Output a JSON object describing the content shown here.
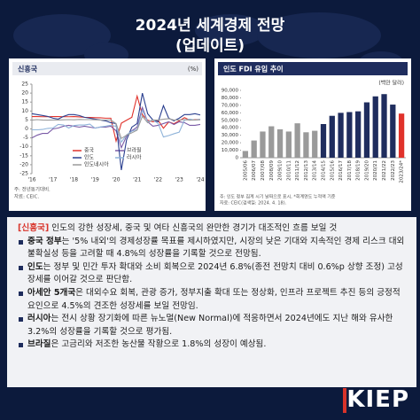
{
  "header": {
    "title": "2024년 세계경제 전망",
    "subtitle": "(업데이트)"
  },
  "chart_data": [
    {
      "type": "line",
      "title": "신흥국",
      "unit": "(%)",
      "categories": [
        "'16",
        null,
        null,
        null,
        "'17",
        null,
        null,
        null,
        "'18",
        null,
        null,
        null,
        "'19",
        null,
        null,
        null,
        "'20",
        null,
        null,
        null,
        "'21",
        null,
        null,
        null,
        "'22",
        null,
        null,
        null,
        "'23",
        null,
        null,
        null,
        "'24"
      ],
      "series": [
        {
          "name": "중국",
          "color": "#e0322b",
          "values": [
            6.9,
            6.9,
            6.8,
            6.8,
            6.9,
            6.9,
            6.8,
            6.8,
            6.9,
            6.7,
            6.5,
            6.4,
            6.3,
            6.2,
            6.0,
            6.0,
            -6.8,
            3.2,
            4.9,
            6.5,
            18.3,
            7.9,
            4.9,
            4.0,
            4.8,
            0.4,
            3.9,
            2.9,
            4.5,
            6.3,
            4.9,
            5.2,
            5.3
          ]
        },
        {
          "name": "브라질",
          "color": "#7a5aa6",
          "values": [
            -5,
            -3.5,
            -2.5,
            -2.5,
            0,
            0.5,
            1.5,
            2,
            1.5,
            1,
            1.5,
            1,
            0.5,
            1,
            1,
            1.5,
            -1,
            -10.5,
            -4,
            -1,
            1,
            12,
            4,
            1.5,
            2,
            3,
            4,
            2.5,
            4,
            3.5,
            2,
            2,
            2.5
          ]
        },
        {
          "name": "인도",
          "color": "#2a3f8f",
          "values": [
            8.5,
            8,
            7.5,
            7,
            6,
            5.5,
            7,
            8,
            8,
            7.5,
            6.5,
            6,
            5.5,
            5,
            4.5,
            3.5,
            3,
            -23,
            -6,
            1,
            3,
            20,
            8.5,
            5,
            4,
            13,
            6,
            4.5,
            6,
            8,
            8,
            8.5,
            7.8
          ]
        },
        {
          "name": "러시아",
          "color": "#8fb3d9",
          "values": [
            -0.5,
            -0.5,
            -0.3,
            0.3,
            0.5,
            2.5,
            2.2,
            0.5,
            1.9,
            2.2,
            2.2,
            2.7,
            0.4,
            1.1,
            1.5,
            2.1,
            1.4,
            -7.4,
            -3.3,
            -1.3,
            -0.3,
            10.5,
            4,
            5,
            3,
            -4.5,
            -3.7,
            -2.7,
            -1.8,
            4.9,
            5.5,
            4.9,
            5.4
          ]
        },
        {
          "name": "인도네시아",
          "color": "#9b9b9b",
          "values": [
            4.9,
            5.2,
            5,
            4.9,
            5,
            5,
            5.1,
            5.2,
            5.1,
            5.3,
            5.2,
            5.2,
            5.1,
            5,
            5,
            5,
            3,
            -5.3,
            -3.5,
            -2.2,
            -0.7,
            7.1,
            3.5,
            5,
            5,
            5.4,
            5.7,
            5,
            5,
            5.2,
            4.9,
            5,
            5.1
          ]
        }
      ],
      "ylim": [
        -25,
        25
      ],
      "yticks": [
        -25,
        -20,
        -15,
        -10,
        -5,
        0,
        5,
        10,
        15,
        20,
        25
      ],
      "notes": [
        "주: 전년동기대비.",
        "자료: CEIC."
      ]
    },
    {
      "type": "bar",
      "title": "인도 FDI 유입 추이",
      "unit": "(백만 달러)",
      "categories": [
        "2005/06",
        "2006/07",
        "2007/08",
        "2008/09",
        "2009/10",
        "2010/11",
        "2011/12",
        "2012/13",
        "2013/14",
        "2014/15",
        "2015/16",
        "2016/17",
        "2017/18",
        "2018/19",
        "2019/20",
        "2020/21",
        "2021/22",
        "2022/23",
        "2023/24*"
      ],
      "values": [
        9000,
        23000,
        35000,
        42000,
        38000,
        35000,
        46000,
        34000,
        36000,
        45000,
        56000,
        60000,
        61000,
        62000,
        74000,
        82000,
        85000,
        71000,
        59000
      ],
      "colors": [
        "#9a9a9a",
        "#9a9a9a",
        "#9a9a9a",
        "#9a9a9a",
        "#9a9a9a",
        "#9a9a9a",
        "#9a9a9a",
        "#9a9a9a",
        "#9a9a9a",
        "#1f2d5e",
        "#1f2d5e",
        "#1f2d5e",
        "#1f2d5e",
        "#1f2d5e",
        "#1f2d5e",
        "#1f2d5e",
        "#1f2d5e",
        "#1f2d5e",
        "#e0322b"
      ],
      "ylim": [
        0,
        90000
      ],
      "yticks": [
        0,
        {
          "value": 10000,
          "label": "10,000"
        },
        {
          "value": 20000,
          "label": "20,000"
        },
        {
          "value": 30000,
          "label": "30,000"
        },
        {
          "value": 40000,
          "label": "40,000"
        },
        {
          "value": 50000,
          "label": "50,000"
        },
        {
          "value": 60000,
          "label": "60,000"
        },
        {
          "value": 70000,
          "label": "70,000"
        },
        {
          "value": 80000,
          "label": "80,000"
        },
        {
          "value": 90000,
          "label": "90,000"
        }
      ],
      "notes": [
        "주: 인도 정부 집계 시기 날짜으로 표시, *회계연도 누적액 기준",
        "자료: CEIC(검색일: 2024. 4. 18)."
      ]
    }
  ],
  "body": {
    "heading": {
      "label": "[신흥국]",
      "text": " 인도의 강한 성장세, 중국 및 여타 신흥국의 완만한 경기가 대조적인 흐름 보일 것"
    },
    "bullets": [
      {
        "lead": "중국 정부",
        "text": "는 '5% 내외'의 경제성장률 목표를 제시하였지만, 시장의 낮은 기대와 지속적인 경제 리스크 대외 불확실성 등을 고려할 때 4.8%의 성장률을 기록할 것으로 전망됨."
      },
      {
        "lead": "인도",
        "text": "는 정부 및 민간 투자 확대와 소비 회복으로 2024년 6.8%(종전 전망치 대비 0.6%p 상향 조정) 고성장세를 이어갈 것으로 판단함."
      },
      {
        "lead": "아세안 5개국",
        "text": "은 대외수요 회복, 관광 증가, 정부지출 확대 또는 정상화, 인프라 프로젝트 추진 등의 긍정적 요인으로 4.5%의 견조한 성장세를 보일 전망임."
      },
      {
        "lead": "러시아",
        "text": "는 전시 상황 장기화에 따른 뉴노멀(New Normal)에 적응하면서 2024년에도 지난 해와 유사한 3.2%의 성장률을 기록할 것으로 평가됨."
      },
      {
        "lead": "브라질",
        "text": "은 고금리와 저조한 농산물 작황으로 1.8%의 성장이 예상됨."
      }
    ]
  },
  "logo": "KIEP"
}
